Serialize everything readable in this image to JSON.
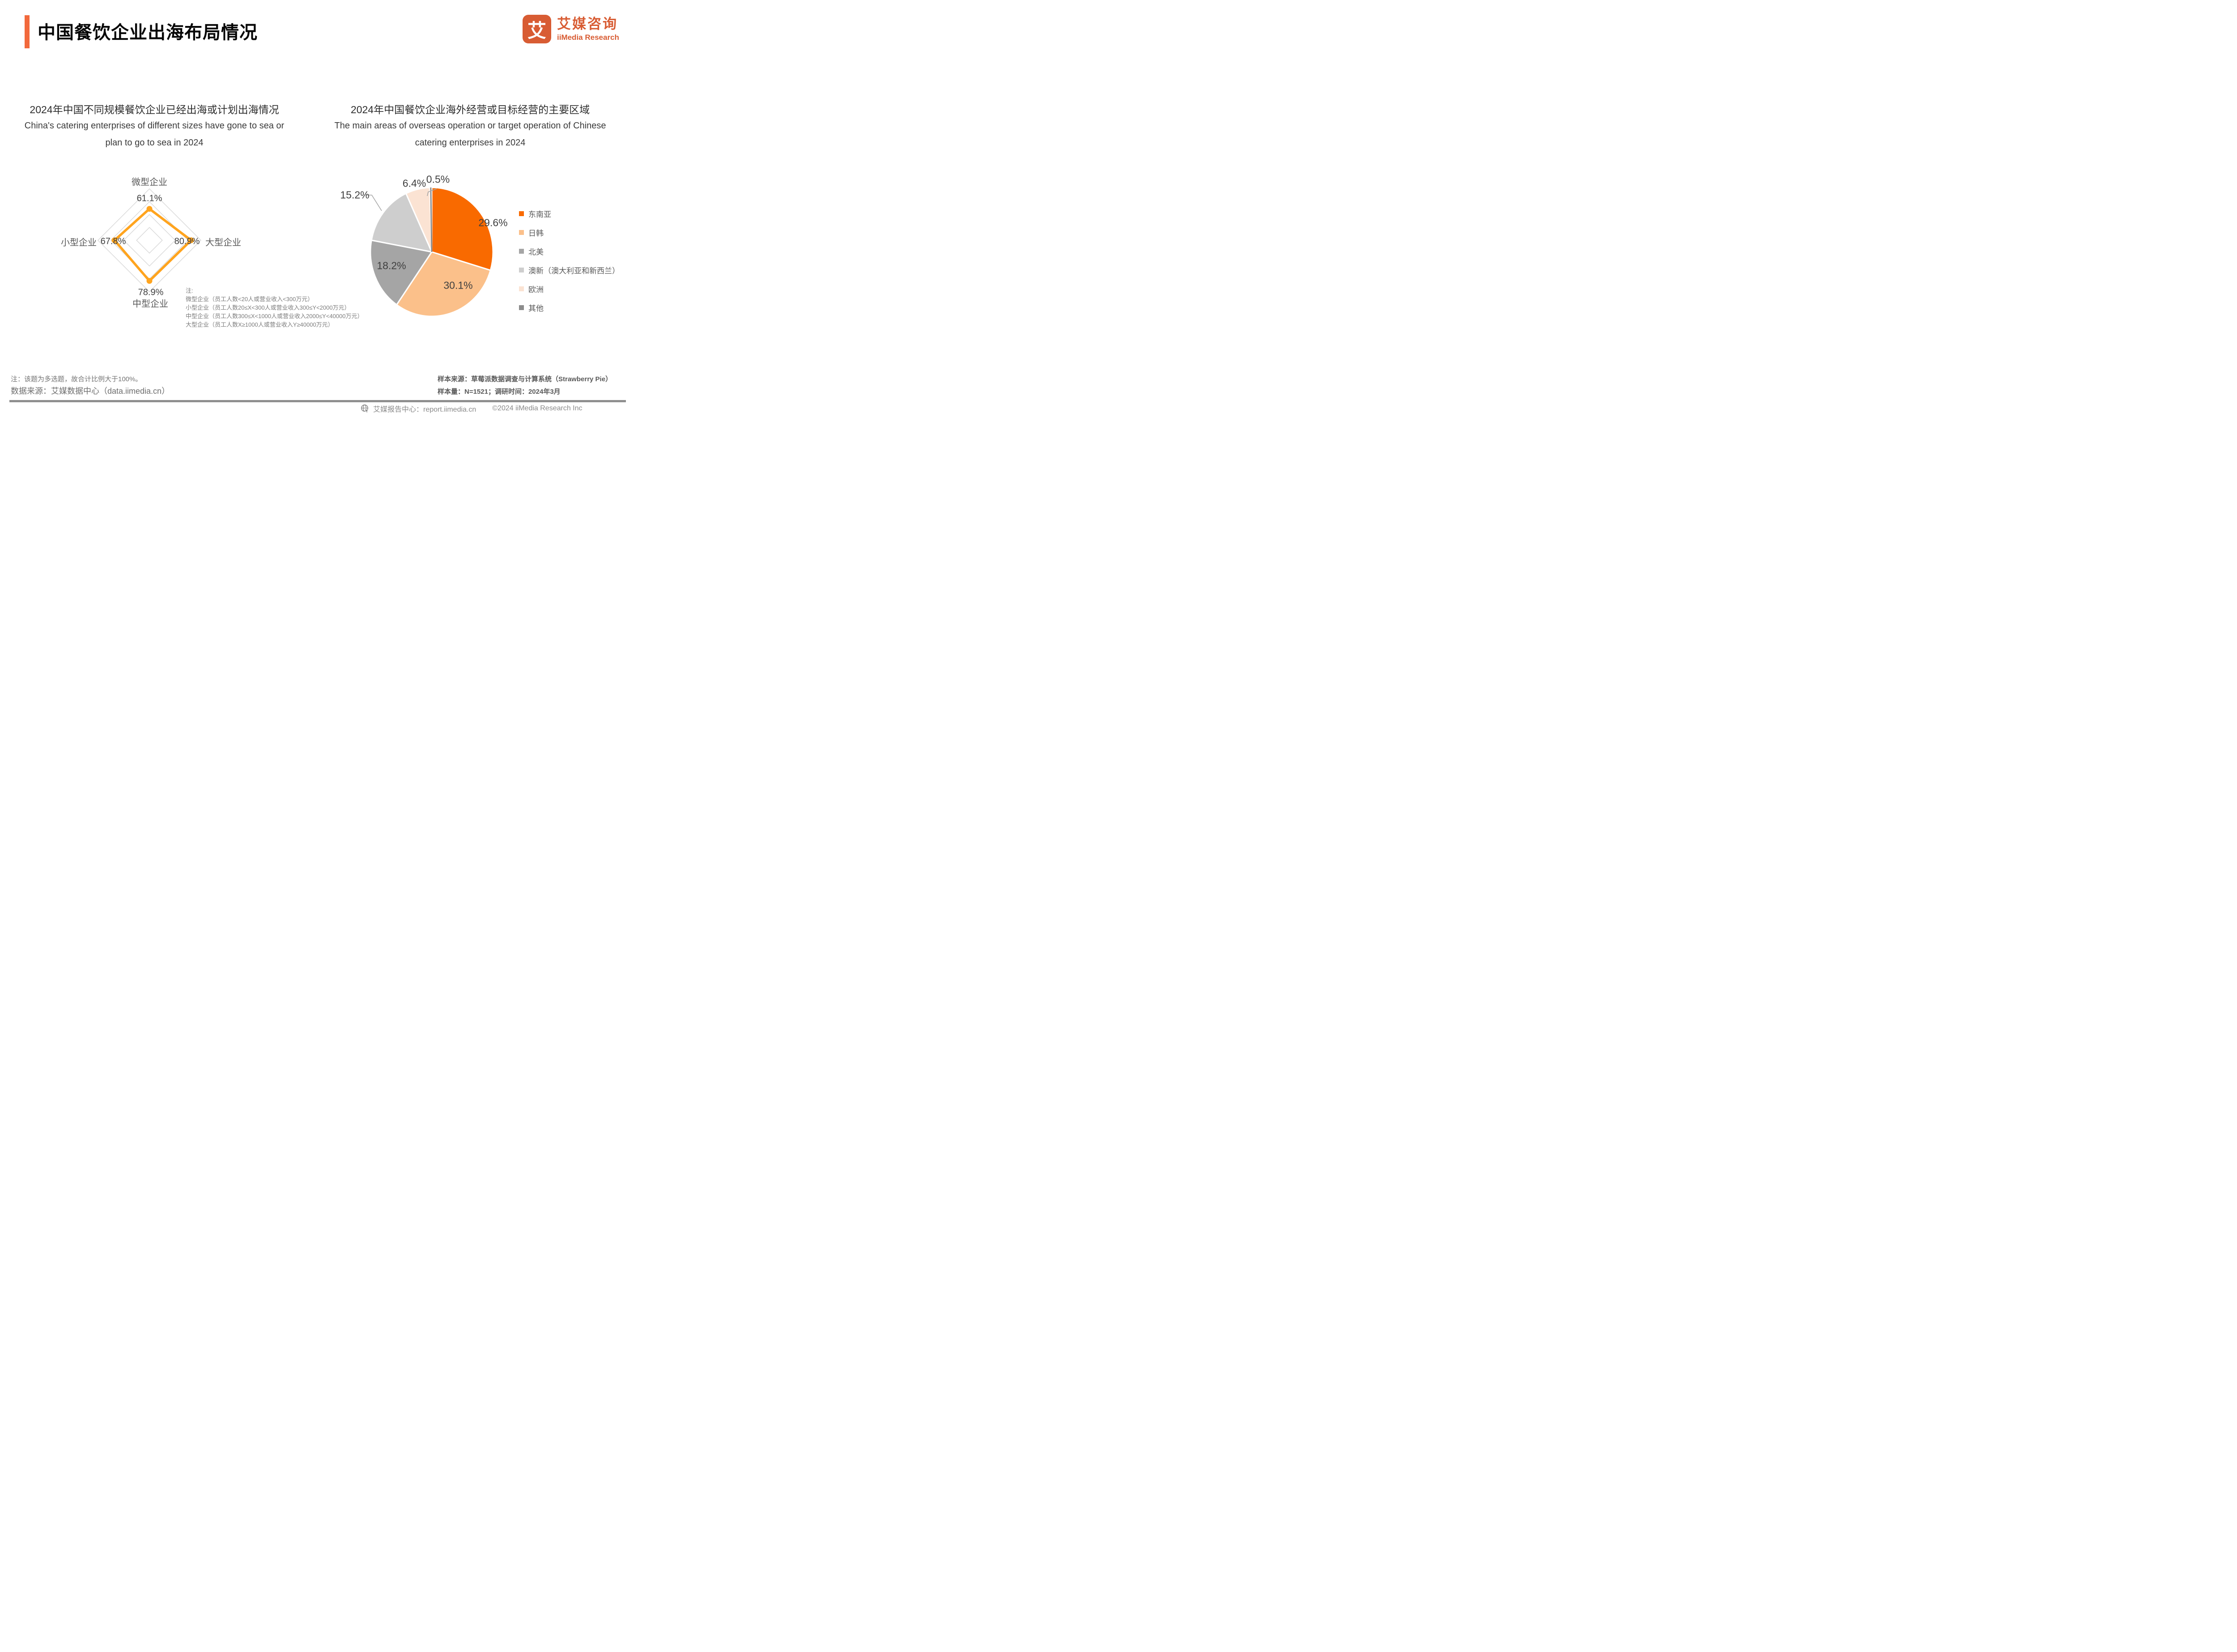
{
  "page": {
    "background": "#FFFFFF"
  },
  "header": {
    "title": "中国餐饮企业出海布局情况",
    "accent_color": "#F2693C",
    "logo": {
      "glyph": "艾",
      "brand_cn": "艾媒咨询",
      "brand_en": "iiMedia Research",
      "color": "#D85C33"
    }
  },
  "chart_data": [
    {
      "type": "radar",
      "title_cn": "2024年中国不同规模餐饮企业已经出海或计划出海情况",
      "title_en_line1": "China's catering enterprises of different sizes have gone to sea or",
      "title_en_line2": "plan to go to sea in 2024",
      "categories": [
        "微型企业",
        "大型企业",
        "中型企业",
        "小型企业"
      ],
      "values": [
        61.1,
        80.9,
        78.9,
        67.8
      ],
      "value_labels": [
        "61.1%",
        "80.9%",
        "78.9%",
        "67.8%"
      ],
      "axis_max": 100,
      "grid_rings": [
        25,
        50,
        75,
        100
      ],
      "grid_on": true,
      "line_color": "#FFA41E",
      "grid_color": "#D9D9D9"
    },
    {
      "type": "pie",
      "title_cn": "2024年中国餐饮企业海外经营或目标经营的主要区域",
      "title_en_line1": "The main areas of overseas operation or target operation of Chinese",
      "title_en_line2": "catering enterprises in 2024",
      "labels": [
        "东南亚",
        "日韩",
        "北美",
        "澳新（澳大利亚和新西兰）",
        "欧洲",
        "其他"
      ],
      "values": [
        29.6,
        30.1,
        18.2,
        15.2,
        6.4,
        0.5
      ],
      "value_labels": [
        "29.6%",
        "30.1%",
        "18.2%",
        "15.2%",
        "6.4%",
        "0.5%"
      ],
      "colors": [
        "#F96A00",
        "#FBC08A",
        "#A5A5A5",
        "#CECECE",
        "#FBE3D3",
        "#8C8C8C"
      ],
      "start_angle_deg": 0,
      "direction": "clockwise",
      "legend_position": "right"
    }
  ],
  "radar_note": {
    "title": "注:",
    "lines": [
      "微型企业（员工人数<20人或营业收入<300万元）",
      "小型企业（员工人数20≤X<300人或营业收入300≤Y<2000万元）",
      "中型企业（员工人数300≤X<1000人或营业收入2000≤Y<40000万元）",
      "大型企业（员工人数X≥1000人或营业收入Y≥40000万元）"
    ]
  },
  "footnotes": {
    "left_note": "注：该题为多选题，故合计比例大于100%。",
    "left_source": "数据来源：艾媒数据中心（data.iimedia.cn）",
    "right_source": "样本来源：草莓派数据调查与计算系统（Strawberry Pie）",
    "right_sample": "样本量：N=1521；调研时间：2024年3月"
  },
  "footer": {
    "brand": "艾媒报告中心：report.iimedia.cn",
    "copyright": "©2024  iiMedia Research  Inc"
  }
}
